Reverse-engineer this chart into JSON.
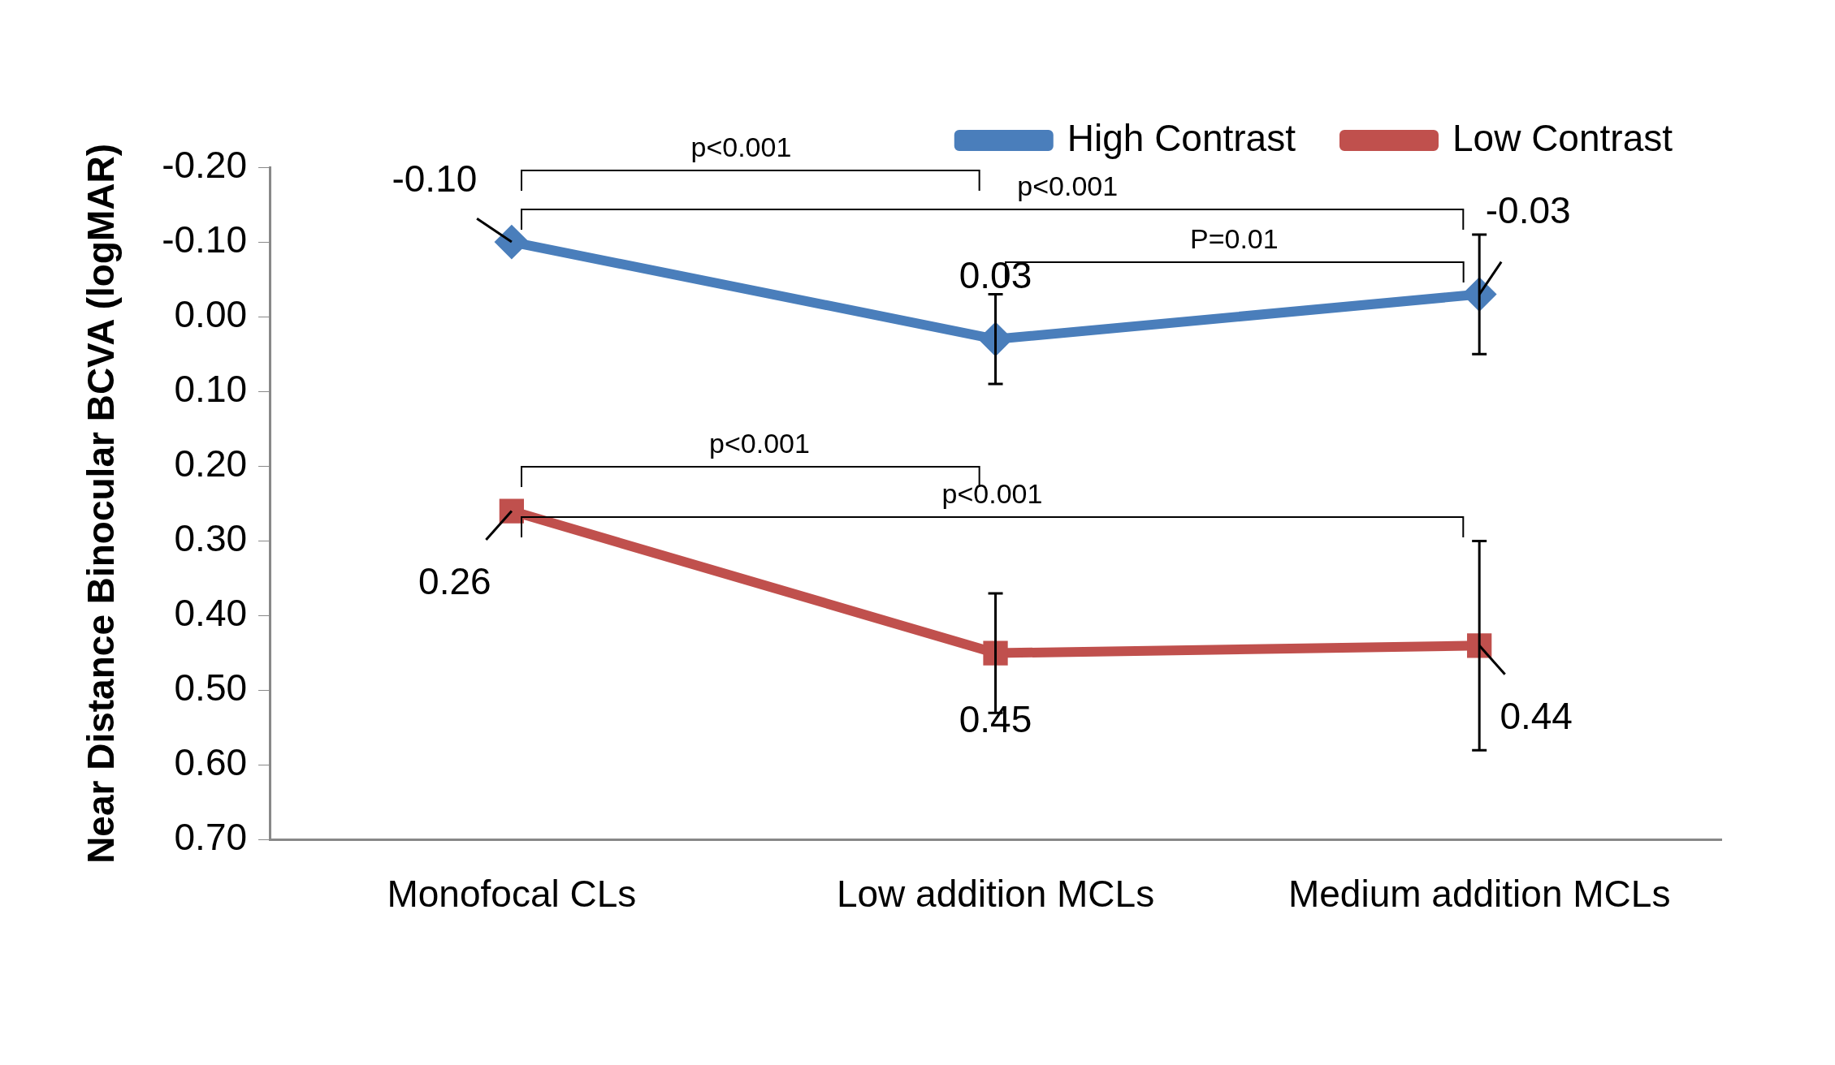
{
  "chart_data": {
    "type": "line",
    "ylabel": "Near Distance Binocular BCVA (logMAR)",
    "categories": [
      "Monofocal CLs",
      "Low addition MCLs",
      "Medium addition MCLs"
    ],
    "series": [
      {
        "name": "High Contrast",
        "color": "#4a7ebb",
        "marker": "diamond",
        "values": [
          -0.1,
          0.03,
          -0.03
        ],
        "errors": [
          null,
          0.06,
          0.08
        ],
        "value_labels": [
          "-0.10",
          "0.03",
          "-0.03"
        ]
      },
      {
        "name": "Low Contrast",
        "color": "#c0504d",
        "marker": "square",
        "values": [
          0.26,
          0.45,
          0.44
        ],
        "errors": [
          null,
          0.08,
          0.14
        ],
        "value_labels": [
          "0.26",
          "0.45",
          "0.44"
        ]
      }
    ],
    "ylim": [
      0.7,
      -0.2
    ],
    "yticks": [
      {
        "value": -0.2,
        "label": "-0.20"
      },
      {
        "value": -0.1,
        "label": "-0.10"
      },
      {
        "value": 0,
        "label": "0.00"
      },
      {
        "value": 0.1,
        "label": "0.10"
      },
      {
        "value": 0.2,
        "label": "0.20"
      },
      {
        "value": 0.3,
        "label": "0.30"
      },
      {
        "value": 0.4,
        "label": "0.40"
      },
      {
        "value": 0.5,
        "label": "0.50"
      },
      {
        "value": 0.6,
        "label": "0.60"
      },
      {
        "value": 0.7,
        "label": "0.70"
      }
    ],
    "grid": false,
    "legend": "top right",
    "annotations": [
      "p<0.001",
      "p<0.001",
      "P=0.01",
      "p<0.001",
      "p<0.001"
    ]
  }
}
